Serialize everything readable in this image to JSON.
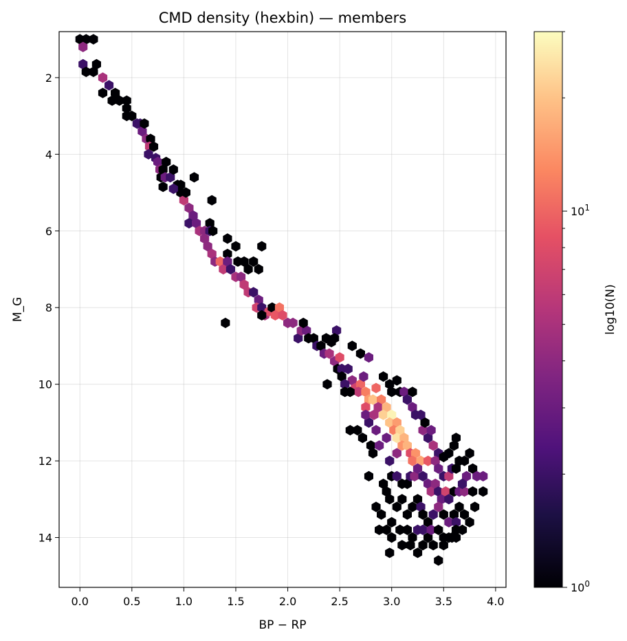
{
  "chart_data": {
    "type": "hexbin",
    "title": "CMD density (hexbin) — members",
    "xlabel": "BP − RP",
    "ylabel": "M_G",
    "xlim": [
      -0.2,
      4.1
    ],
    "ylim": [
      15.3,
      0.8
    ],
    "y_inverted": true,
    "grid": true,
    "xticks": [
      0.0,
      0.5,
      1.0,
      1.5,
      2.0,
      2.5,
      3.0,
      3.5,
      4.0
    ],
    "xtick_labels": [
      "0.0",
      "0.5",
      "1.0",
      "1.5",
      "2.0",
      "2.5",
      "3.0",
      "3.5",
      "4.0"
    ],
    "yticks": [
      2,
      4,
      6,
      8,
      10,
      12,
      14
    ],
    "ytick_labels": [
      "2",
      "4",
      "6",
      "8",
      "10",
      "12",
      "14"
    ],
    "colormap": "magma",
    "colorbar": {
      "label": "log10(N)",
      "scale": "log",
      "range": [
        1,
        30
      ],
      "major_ticks": [
        1,
        10
      ],
      "major_tick_labels": [
        "10",
        "10"
      ],
      "major_tick_exponents": [
        "0",
        "1"
      ]
    },
    "bins": [
      [
        0.0,
        1.0,
        1
      ],
      [
        0.06,
        1.0,
        1
      ],
      [
        0.13,
        1.0,
        1
      ],
      [
        0.03,
        1.2,
        4
      ],
      [
        0.03,
        1.65,
        2
      ],
      [
        0.06,
        1.85,
        1
      ],
      [
        0.13,
        1.85,
        1
      ],
      [
        0.16,
        1.65,
        1
      ],
      [
        0.22,
        2.0,
        5
      ],
      [
        0.22,
        2.4,
        1
      ],
      [
        0.28,
        2.2,
        2
      ],
      [
        0.34,
        2.4,
        1
      ],
      [
        0.31,
        2.6,
        1
      ],
      [
        0.38,
        2.6,
        1
      ],
      [
        0.45,
        2.6,
        1
      ],
      [
        0.45,
        2.8,
        1
      ],
      [
        0.45,
        3.0,
        1
      ],
      [
        0.5,
        3.0,
        1
      ],
      [
        0.55,
        3.2,
        2
      ],
      [
        0.58,
        3.2,
        2
      ],
      [
        0.6,
        3.4,
        3
      ],
      [
        0.62,
        3.2,
        1
      ],
      [
        0.64,
        3.6,
        4
      ],
      [
        0.68,
        3.6,
        1
      ],
      [
        0.67,
        3.8,
        6
      ],
      [
        0.71,
        3.8,
        1
      ],
      [
        0.66,
        4.0,
        2
      ],
      [
        0.73,
        4.1,
        2
      ],
      [
        0.75,
        4.2,
        3
      ],
      [
        0.77,
        4.4,
        4
      ],
      [
        0.8,
        4.4,
        1
      ],
      [
        0.83,
        4.2,
        1
      ],
      [
        0.78,
        4.6,
        1
      ],
      [
        0.82,
        4.6,
        3
      ],
      [
        0.8,
        4.85,
        1
      ],
      [
        0.87,
        4.6,
        2
      ],
      [
        0.9,
        4.4,
        1
      ],
      [
        0.94,
        4.8,
        1
      ],
      [
        0.97,
        4.8,
        1
      ],
      [
        0.97,
        5.0,
        1
      ],
      [
        0.9,
        4.9,
        2
      ],
      [
        1.0,
        5.2,
        6
      ],
      [
        1.02,
        5.0,
        1
      ],
      [
        1.1,
        4.6,
        1
      ],
      [
        1.05,
        5.4,
        4
      ],
      [
        1.09,
        5.6,
        3
      ],
      [
        1.05,
        5.8,
        2
      ],
      [
        1.12,
        5.8,
        3
      ],
      [
        1.15,
        6.0,
        5
      ],
      [
        1.2,
        6.0,
        4
      ],
      [
        1.25,
        5.8,
        1
      ],
      [
        1.25,
        6.0,
        2
      ],
      [
        1.28,
        6.0,
        1
      ],
      [
        1.27,
        5.2,
        1
      ],
      [
        1.2,
        6.2,
        4
      ],
      [
        1.23,
        6.4,
        4
      ],
      [
        1.27,
        6.6,
        5
      ],
      [
        1.3,
        6.8,
        4
      ],
      [
        1.35,
        6.8,
        10
      ],
      [
        1.38,
        7.0,
        6
      ],
      [
        1.42,
        6.6,
        1
      ],
      [
        1.42,
        6.2,
        1
      ],
      [
        1.5,
        6.4,
        1
      ],
      [
        1.42,
        6.8,
        3
      ],
      [
        1.45,
        7.0,
        2
      ],
      [
        1.52,
        6.8,
        1
      ],
      [
        1.58,
        6.8,
        1
      ],
      [
        1.62,
        7.0,
        1
      ],
      [
        1.67,
        6.8,
        1
      ],
      [
        1.72,
        7.0,
        1
      ],
      [
        1.75,
        6.4,
        1
      ],
      [
        1.5,
        7.2,
        5
      ],
      [
        1.55,
        7.2,
        4
      ],
      [
        1.58,
        7.4,
        6
      ],
      [
        1.62,
        7.6,
        6
      ],
      [
        1.67,
        7.6,
        2
      ],
      [
        1.72,
        7.8,
        3
      ],
      [
        1.7,
        8.0,
        7
      ],
      [
        1.75,
        8.0,
        2
      ],
      [
        1.78,
        8.2,
        5
      ],
      [
        1.82,
        8.1,
        8
      ],
      [
        1.85,
        8.0,
        1
      ],
      [
        1.92,
        8.0,
        11
      ],
      [
        1.88,
        8.2,
        9
      ],
      [
        1.75,
        8.2,
        1
      ],
      [
        1.4,
        8.4,
        1
      ],
      [
        1.95,
        8.2,
        8
      ],
      [
        2.0,
        8.4,
        4
      ],
      [
        2.05,
        8.4,
        4
      ],
      [
        2.1,
        8.8,
        2
      ],
      [
        2.13,
        8.6,
        4
      ],
      [
        2.18,
        8.6,
        3
      ],
      [
        2.2,
        8.8,
        1
      ],
      [
        2.15,
        8.4,
        1
      ],
      [
        2.25,
        8.8,
        1
      ],
      [
        2.28,
        9.0,
        2
      ],
      [
        2.32,
        9.0,
        1
      ],
      [
        2.37,
        8.8,
        1
      ],
      [
        2.42,
        8.9,
        1
      ],
      [
        2.47,
        8.6,
        2
      ],
      [
        2.45,
        8.8,
        1
      ],
      [
        2.35,
        9.2,
        3
      ],
      [
        2.4,
        9.2,
        5
      ],
      [
        2.45,
        9.4,
        4
      ],
      [
        2.5,
        9.3,
        8
      ],
      [
        2.48,
        9.6,
        1
      ],
      [
        2.52,
        9.6,
        2
      ],
      [
        2.52,
        9.8,
        1
      ],
      [
        2.58,
        9.6,
        2
      ],
      [
        2.62,
        9.9,
        4
      ],
      [
        2.55,
        10.0,
        2
      ],
      [
        2.65,
        10.1,
        7
      ],
      [
        2.7,
        10.0,
        10
      ],
      [
        2.73,
        9.8,
        3
      ],
      [
        2.68,
        10.2,
        6
      ],
      [
        2.75,
        10.2,
        12
      ],
      [
        2.78,
        10.4,
        15
      ],
      [
        2.75,
        10.6,
        8
      ],
      [
        2.6,
        10.2,
        1
      ],
      [
        2.38,
        10.0,
        1
      ],
      [
        2.55,
        10.2,
        1
      ],
      [
        2.62,
        9.0,
        1
      ],
      [
        2.7,
        9.2,
        1
      ],
      [
        2.78,
        9.3,
        3
      ],
      [
        2.85,
        10.1,
        10
      ],
      [
        2.82,
        10.4,
        20
      ],
      [
        2.9,
        10.4,
        12
      ],
      [
        2.87,
        10.6,
        5
      ],
      [
        2.95,
        10.6,
        18
      ],
      [
        2.92,
        10.8,
        22
      ],
      [
        3.0,
        10.8,
        28
      ],
      [
        2.98,
        11.0,
        20
      ],
      [
        3.05,
        11.0,
        15
      ],
      [
        3.02,
        11.2,
        12
      ],
      [
        3.08,
        11.2,
        22
      ],
      [
        3.05,
        11.4,
        25
      ],
      [
        3.12,
        11.4,
        18
      ],
      [
        3.1,
        11.6,
        14
      ],
      [
        3.15,
        11.6,
        18
      ],
      [
        3.18,
        11.8,
        8
      ],
      [
        3.23,
        11.8,
        14
      ],
      [
        3.2,
        12.0,
        11
      ],
      [
        3.28,
        12.0,
        16
      ],
      [
        3.35,
        12.0,
        9
      ],
      [
        2.92,
        9.8,
        1
      ],
      [
        2.98,
        10.0,
        1
      ],
      [
        3.05,
        9.9,
        1
      ],
      [
        3.08,
        10.2,
        1
      ],
      [
        3.12,
        10.2,
        3
      ],
      [
        3.15,
        10.4,
        2
      ],
      [
        3.2,
        10.6,
        3
      ],
      [
        3.23,
        10.8,
        2
      ],
      [
        3.3,
        11.2,
        4
      ],
      [
        3.35,
        11.4,
        2
      ],
      [
        3.38,
        11.2,
        3
      ],
      [
        3.32,
        11.0,
        1
      ],
      [
        3.28,
        10.8,
        2
      ],
      [
        3.2,
        10.2,
        1
      ],
      [
        3.0,
        10.2,
        1
      ],
      [
        2.6,
        11.2,
        1
      ],
      [
        2.67,
        11.2,
        1
      ],
      [
        2.72,
        11.4,
        1
      ],
      [
        2.8,
        11.6,
        1
      ],
      [
        2.82,
        11.8,
        1
      ],
      [
        2.88,
        11.6,
        3
      ],
      [
        2.95,
        11.4,
        3
      ],
      [
        2.85,
        11.2,
        3
      ],
      [
        2.78,
        11.0,
        2
      ],
      [
        2.75,
        10.8,
        3
      ],
      [
        2.83,
        10.8,
        5
      ],
      [
        3.05,
        11.8,
        4
      ],
      [
        2.98,
        12.0,
        2
      ],
      [
        3.4,
        11.6,
        5
      ],
      [
        3.45,
        11.8,
        2
      ],
      [
        3.42,
        12.0,
        4
      ],
      [
        3.45,
        12.2,
        3
      ],
      [
        3.5,
        12.4,
        2
      ],
      [
        3.55,
        12.4,
        6
      ],
      [
        3.58,
        12.2,
        2
      ],
      [
        3.62,
        12.2,
        1
      ],
      [
        3.65,
        12.0,
        1
      ],
      [
        3.7,
        12.0,
        1
      ],
      [
        3.75,
        11.8,
        1
      ],
      [
        3.78,
        12.2,
        1
      ],
      [
        3.55,
        11.8,
        1
      ],
      [
        3.6,
        11.6,
        1
      ],
      [
        3.62,
        11.4,
        1
      ],
      [
        3.5,
        11.9,
        1
      ],
      [
        3.0,
        12.4,
        1
      ],
      [
        3.05,
        12.4,
        2
      ],
      [
        3.1,
        12.6,
        1
      ],
      [
        3.15,
        12.6,
        1
      ],
      [
        3.18,
        12.4,
        2
      ],
      [
        3.22,
        12.4,
        4
      ],
      [
        3.25,
        12.2,
        3
      ],
      [
        3.3,
        12.4,
        2
      ],
      [
        3.35,
        12.6,
        3
      ],
      [
        3.38,
        12.8,
        5
      ],
      [
        3.42,
        12.6,
        4
      ],
      [
        3.45,
        12.8,
        2
      ],
      [
        3.48,
        13.0,
        3
      ],
      [
        3.52,
        12.8,
        7
      ],
      [
        3.55,
        13.0,
        2
      ],
      [
        3.6,
        12.8,
        1
      ],
      [
        3.65,
        12.8,
        3
      ],
      [
        3.7,
        12.8,
        4
      ],
      [
        3.78,
        12.8,
        1
      ],
      [
        3.82,
        12.4,
        3
      ],
      [
        3.88,
        12.4,
        3
      ],
      [
        3.88,
        12.8,
        1
      ],
      [
        3.72,
        12.4,
        3
      ],
      [
        3.68,
        12.6,
        2
      ],
      [
        2.78,
        12.4,
        1
      ],
      [
        2.92,
        12.6,
        1
      ],
      [
        2.95,
        12.8,
        1
      ],
      [
        2.98,
        13.0,
        1
      ],
      [
        3.05,
        13.2,
        1
      ],
      [
        3.1,
        13.0,
        1
      ],
      [
        3.15,
        13.4,
        1
      ],
      [
        3.2,
        13.2,
        1
      ],
      [
        3.25,
        13.0,
        1
      ],
      [
        3.28,
        13.2,
        2
      ],
      [
        3.3,
        13.4,
        1
      ],
      [
        3.35,
        13.6,
        1
      ],
      [
        3.4,
        13.4,
        2
      ],
      [
        3.45,
        13.2,
        4
      ],
      [
        3.5,
        13.4,
        1
      ],
      [
        3.55,
        13.6,
        3
      ],
      [
        3.6,
        13.4,
        1
      ],
      [
        3.62,
        13.6,
        2
      ],
      [
        3.65,
        13.2,
        1
      ],
      [
        3.7,
        13.4,
        1
      ],
      [
        3.75,
        13.6,
        1
      ],
      [
        3.8,
        13.2,
        1
      ],
      [
        2.85,
        13.2,
        1
      ],
      [
        2.9,
        13.4,
        1
      ],
      [
        3.0,
        13.6,
        1
      ],
      [
        3.08,
        13.8,
        1
      ],
      [
        3.15,
        13.8,
        1
      ],
      [
        3.2,
        14.0,
        1
      ],
      [
        3.25,
        13.8,
        2
      ],
      [
        3.3,
        13.8,
        2
      ],
      [
        3.35,
        14.0,
        1
      ],
      [
        3.38,
        13.8,
        3
      ],
      [
        3.45,
        13.8,
        1
      ],
      [
        3.5,
        14.0,
        1
      ],
      [
        3.58,
        14.0,
        1
      ],
      [
        3.62,
        13.8,
        1
      ],
      [
        3.68,
        13.8,
        1
      ],
      [
        2.88,
        13.8,
        1
      ],
      [
        2.95,
        13.8,
        1
      ],
      [
        3.0,
        14.0,
        1
      ],
      [
        2.98,
        14.4,
        1
      ],
      [
        3.1,
        14.2,
        1
      ],
      [
        3.18,
        14.2,
        1
      ],
      [
        3.25,
        14.4,
        1
      ],
      [
        3.3,
        14.2,
        1
      ],
      [
        3.4,
        14.2,
        1
      ],
      [
        3.45,
        14.6,
        1
      ],
      [
        3.5,
        14.2,
        1
      ],
      [
        3.55,
        14.0,
        1
      ],
      [
        3.62,
        14.0,
        1
      ]
    ]
  }
}
